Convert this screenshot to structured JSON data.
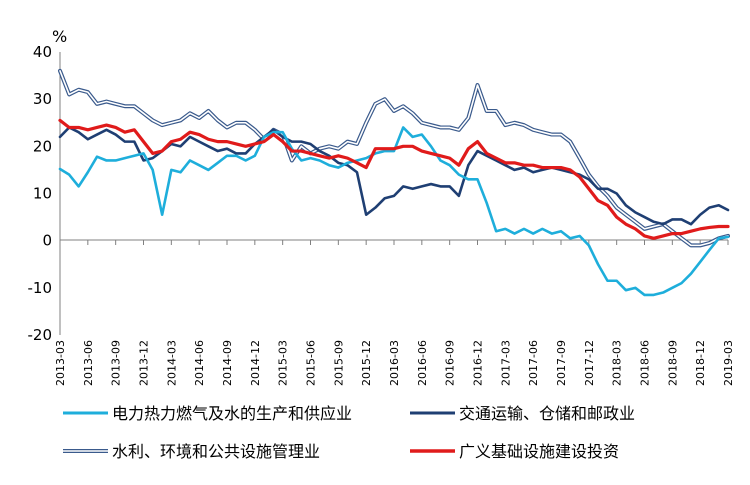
{
  "chart_data": {
    "type": "line",
    "unit_label": "%",
    "ylim": [
      -20,
      40
    ],
    "yticks": [
      40,
      30,
      20,
      10,
      0,
      -10,
      -20
    ],
    "grid": false,
    "legend_position": "bottom",
    "x_tick_labels": [
      "2013-03",
      "2013-06",
      "2013-09",
      "2013-12",
      "2014-03",
      "2014-06",
      "2014-09",
      "2014-12",
      "2015-03",
      "2015-06",
      "2015-09",
      "2015-12",
      "2016-03",
      "2016-06",
      "2016-09",
      "2016-12",
      "2017-03",
      "2017-06",
      "2017-09",
      "2017-12",
      "2018-03",
      "2018-06",
      "2018-09",
      "2018-12",
      "2019-03"
    ],
    "series": [
      {
        "name": "电力热力燃气及水的生产和供应业",
        "color": "#1EAEDB",
        "style": "solid",
        "points": [
          [
            0,
            15.2
          ],
          [
            0.33,
            14
          ],
          [
            0.67,
            11.5
          ],
          [
            1,
            14.5
          ],
          [
            1.33,
            17.8
          ],
          [
            1.67,
            17
          ],
          [
            2,
            17
          ],
          [
            2.33,
            17.5
          ],
          [
            2.67,
            18
          ],
          [
            3,
            18.5
          ],
          [
            3.33,
            15
          ],
          [
            3.67,
            5.5
          ],
          [
            4,
            15
          ],
          [
            4.33,
            14.5
          ],
          [
            4.67,
            17
          ],
          [
            5,
            16
          ],
          [
            5.33,
            15
          ],
          [
            5.67,
            16.5
          ],
          [
            6,
            18
          ],
          [
            6.33,
            18
          ],
          [
            6.67,
            17
          ],
          [
            7,
            18
          ],
          [
            7.33,
            22
          ],
          [
            7.67,
            23
          ],
          [
            8,
            23
          ],
          [
            8.33,
            19.5
          ],
          [
            8.67,
            17
          ],
          [
            9,
            17.5
          ],
          [
            9.33,
            17
          ],
          [
            9.67,
            16
          ],
          [
            10,
            15.5
          ],
          [
            10.33,
            16.5
          ],
          [
            10.67,
            17
          ],
          [
            11,
            17.5
          ],
          [
            11.33,
            18.5
          ],
          [
            11.67,
            19
          ],
          [
            12,
            19
          ],
          [
            12.33,
            24
          ],
          [
            12.67,
            22
          ],
          [
            13,
            22.5
          ],
          [
            13.33,
            20
          ],
          [
            13.67,
            17
          ],
          [
            14,
            16
          ],
          [
            14.33,
            14
          ],
          [
            14.67,
            13
          ],
          [
            15,
            13
          ],
          [
            15.33,
            8
          ],
          [
            15.67,
            2
          ],
          [
            16,
            2.5
          ],
          [
            16.33,
            1.5
          ],
          [
            16.67,
            2.5
          ],
          [
            17,
            1.5
          ],
          [
            17.33,
            2.5
          ],
          [
            17.67,
            1.5
          ],
          [
            18,
            2
          ],
          [
            18.33,
            0.5
          ],
          [
            18.67,
            1
          ],
          [
            19,
            -1
          ],
          [
            19.33,
            -5
          ],
          [
            19.67,
            -8.5
          ],
          [
            20,
            -8.5
          ],
          [
            20.33,
            -10.5
          ],
          [
            20.67,
            -10
          ],
          [
            21,
            -11.5
          ],
          [
            21.33,
            -11.5
          ],
          [
            21.67,
            -11
          ],
          [
            22,
            -10
          ],
          [
            22.33,
            -9
          ],
          [
            22.67,
            -7
          ],
          [
            23,
            -4.5
          ],
          [
            23.33,
            -2
          ],
          [
            23.67,
            0.5
          ],
          [
            24,
            0.8
          ]
        ]
      },
      {
        "name": "交通运输、仓储和邮政业",
        "color": "#1F3F73",
        "style": "solid",
        "points": [
          [
            0,
            22
          ],
          [
            0.33,
            24
          ],
          [
            0.67,
            23
          ],
          [
            1,
            21.5
          ],
          [
            1.33,
            22.5
          ],
          [
            1.67,
            23.5
          ],
          [
            2,
            22.5
          ],
          [
            2.33,
            21
          ],
          [
            2.67,
            21
          ],
          [
            3,
            17
          ],
          [
            3.33,
            17.5
          ],
          [
            3.67,
            19
          ],
          [
            4,
            20.5
          ],
          [
            4.33,
            20
          ],
          [
            4.67,
            22
          ],
          [
            5,
            21
          ],
          [
            5.33,
            20
          ],
          [
            5.67,
            19
          ],
          [
            6,
            19.5
          ],
          [
            6.33,
            18.5
          ],
          [
            6.67,
            18.5
          ],
          [
            7,
            20.5
          ],
          [
            7.33,
            22
          ],
          [
            7.67,
            23.5
          ],
          [
            8,
            22
          ],
          [
            8.33,
            21
          ],
          [
            8.67,
            21
          ],
          [
            9,
            20.5
          ],
          [
            9.33,
            19
          ],
          [
            9.67,
            18
          ],
          [
            10,
            16.5
          ],
          [
            10.33,
            16
          ],
          [
            10.67,
            14.5
          ],
          [
            11,
            5.5
          ],
          [
            11.33,
            7
          ],
          [
            11.67,
            9
          ],
          [
            12,
            9.5
          ],
          [
            12.33,
            11.5
          ],
          [
            12.67,
            11
          ],
          [
            13,
            11.5
          ],
          [
            13.33,
            12
          ],
          [
            13.67,
            11.5
          ],
          [
            14,
            11.5
          ],
          [
            14.33,
            9.5
          ],
          [
            14.67,
            16
          ],
          [
            15,
            19
          ],
          [
            15.33,
            18
          ],
          [
            15.67,
            17
          ],
          [
            16,
            16
          ],
          [
            16.33,
            15
          ],
          [
            16.67,
            15.5
          ],
          [
            17,
            14.5
          ],
          [
            17.33,
            15
          ],
          [
            17.67,
            15.5
          ],
          [
            18,
            15
          ],
          [
            18.33,
            14.5
          ],
          [
            18.67,
            14
          ],
          [
            19,
            13
          ],
          [
            19.33,
            11
          ],
          [
            19.67,
            11
          ],
          [
            20,
            10
          ],
          [
            20.33,
            7.5
          ],
          [
            20.67,
            6
          ],
          [
            21,
            5
          ],
          [
            21.33,
            4
          ],
          [
            21.67,
            3.5
          ],
          [
            22,
            4.5
          ],
          [
            22.33,
            4.5
          ],
          [
            22.67,
            3.5
          ],
          [
            23,
            5.5
          ],
          [
            23.33,
            7
          ],
          [
            23.67,
            7.5
          ],
          [
            24,
            6.5
          ]
        ]
      },
      {
        "name": "水利、环境和公共设施管理业",
        "color": "#3A5A8C",
        "style": "double",
        "points": [
          [
            0,
            36
          ],
          [
            0.33,
            31
          ],
          [
            0.67,
            32
          ],
          [
            1,
            31.5
          ],
          [
            1.33,
            29
          ],
          [
            1.67,
            29.5
          ],
          [
            2,
            29
          ],
          [
            2.33,
            28.5
          ],
          [
            2.67,
            28.5
          ],
          [
            3,
            27
          ],
          [
            3.33,
            25.5
          ],
          [
            3.67,
            24.5
          ],
          [
            4,
            25
          ],
          [
            4.33,
            25.5
          ],
          [
            4.67,
            27
          ],
          [
            5,
            26
          ],
          [
            5.33,
            27.5
          ],
          [
            5.67,
            25.5
          ],
          [
            6,
            24
          ],
          [
            6.33,
            25
          ],
          [
            6.67,
            25
          ],
          [
            7,
            23.5
          ],
          [
            7.33,
            21.5
          ],
          [
            7.67,
            23.5
          ],
          [
            8,
            22.5
          ],
          [
            8.33,
            17
          ],
          [
            8.67,
            20
          ],
          [
            9,
            18.5
          ],
          [
            9.33,
            19.5
          ],
          [
            9.67,
            20
          ],
          [
            10,
            19.5
          ],
          [
            10.33,
            21
          ],
          [
            10.67,
            20.5
          ],
          [
            11,
            25
          ],
          [
            11.33,
            29
          ],
          [
            11.67,
            30
          ],
          [
            12,
            27.5
          ],
          [
            12.33,
            28.5
          ],
          [
            12.67,
            27
          ],
          [
            13,
            25
          ],
          [
            13.33,
            24.5
          ],
          [
            13.67,
            24
          ],
          [
            14,
            24
          ],
          [
            14.33,
            23.5
          ],
          [
            14.67,
            26
          ],
          [
            15,
            33
          ],
          [
            15.33,
            27.5
          ],
          [
            15.67,
            27.5
          ],
          [
            16,
            24.5
          ],
          [
            16.33,
            25
          ],
          [
            16.67,
            24.5
          ],
          [
            17,
            23.5
          ],
          [
            17.33,
            23
          ],
          [
            17.67,
            22.5
          ],
          [
            18,
            22.5
          ],
          [
            18.33,
            21
          ],
          [
            18.67,
            17.5
          ],
          [
            19,
            14
          ],
          [
            19.33,
            11.5
          ],
          [
            19.67,
            9.5
          ],
          [
            20,
            7
          ],
          [
            20.33,
            5.5
          ],
          [
            20.67,
            4
          ],
          [
            21,
            2.5
          ],
          [
            21.33,
            3
          ],
          [
            21.67,
            3.5
          ],
          [
            22,
            2
          ],
          [
            22.33,
            0.5
          ],
          [
            22.67,
            -1
          ],
          [
            23,
            -1
          ],
          [
            23.33,
            -0.5
          ],
          [
            23.67,
            0.5
          ],
          [
            24,
            1
          ]
        ]
      },
      {
        "name": "广义基础设施建设投资",
        "color": "#E01B1B",
        "style": "thick",
        "points": [
          [
            0,
            25.5
          ],
          [
            0.33,
            24
          ],
          [
            0.67,
            24
          ],
          [
            1,
            23.5
          ],
          [
            1.33,
            24
          ],
          [
            1.67,
            24.5
          ],
          [
            2,
            24
          ],
          [
            2.33,
            23
          ],
          [
            2.67,
            23.5
          ],
          [
            3,
            21
          ],
          [
            3.33,
            18.5
          ],
          [
            3.67,
            19
          ],
          [
            4,
            21
          ],
          [
            4.33,
            21.5
          ],
          [
            4.67,
            23
          ],
          [
            5,
            22.5
          ],
          [
            5.33,
            21.5
          ],
          [
            5.67,
            21
          ],
          [
            6,
            21
          ],
          [
            6.33,
            20.5
          ],
          [
            6.67,
            20
          ],
          [
            7,
            20.5
          ],
          [
            7.33,
            21
          ],
          [
            7.67,
            22.5
          ],
          [
            8,
            21
          ],
          [
            8.33,
            19
          ],
          [
            8.67,
            19
          ],
          [
            9,
            18.5
          ],
          [
            9.33,
            18
          ],
          [
            9.67,
            17.5
          ],
          [
            10,
            18
          ],
          [
            10.33,
            17.5
          ],
          [
            10.67,
            16.5
          ],
          [
            11,
            15.5
          ],
          [
            11.33,
            19.5
          ],
          [
            11.67,
            19.5
          ],
          [
            12,
            19.5
          ],
          [
            12.33,
            20
          ],
          [
            12.67,
            20
          ],
          [
            13,
            19
          ],
          [
            13.33,
            18.5
          ],
          [
            13.67,
            18
          ],
          [
            14,
            17.5
          ],
          [
            14.33,
            16
          ],
          [
            14.67,
            19.5
          ],
          [
            15,
            21
          ],
          [
            15.33,
            18.5
          ],
          [
            15.67,
            17.5
          ],
          [
            16,
            16.5
          ],
          [
            16.33,
            16.5
          ],
          [
            16.67,
            16
          ],
          [
            17,
            16
          ],
          [
            17.33,
            15.5
          ],
          [
            17.67,
            15.5
          ],
          [
            18,
            15.5
          ],
          [
            18.33,
            15
          ],
          [
            18.67,
            13.5
          ],
          [
            19,
            11
          ],
          [
            19.33,
            8.5
          ],
          [
            19.67,
            7.5
          ],
          [
            20,
            5
          ],
          [
            20.33,
            3.5
          ],
          [
            20.67,
            2.5
          ],
          [
            21,
            1
          ],
          [
            21.33,
            0.5
          ],
          [
            21.67,
            1
          ],
          [
            22,
            1.5
          ],
          [
            22.33,
            1.5
          ],
          [
            22.67,
            2
          ],
          [
            23,
            2.5
          ],
          [
            23.33,
            2.8
          ],
          [
            23.67,
            3
          ],
          [
            24,
            3
          ]
        ]
      }
    ]
  }
}
